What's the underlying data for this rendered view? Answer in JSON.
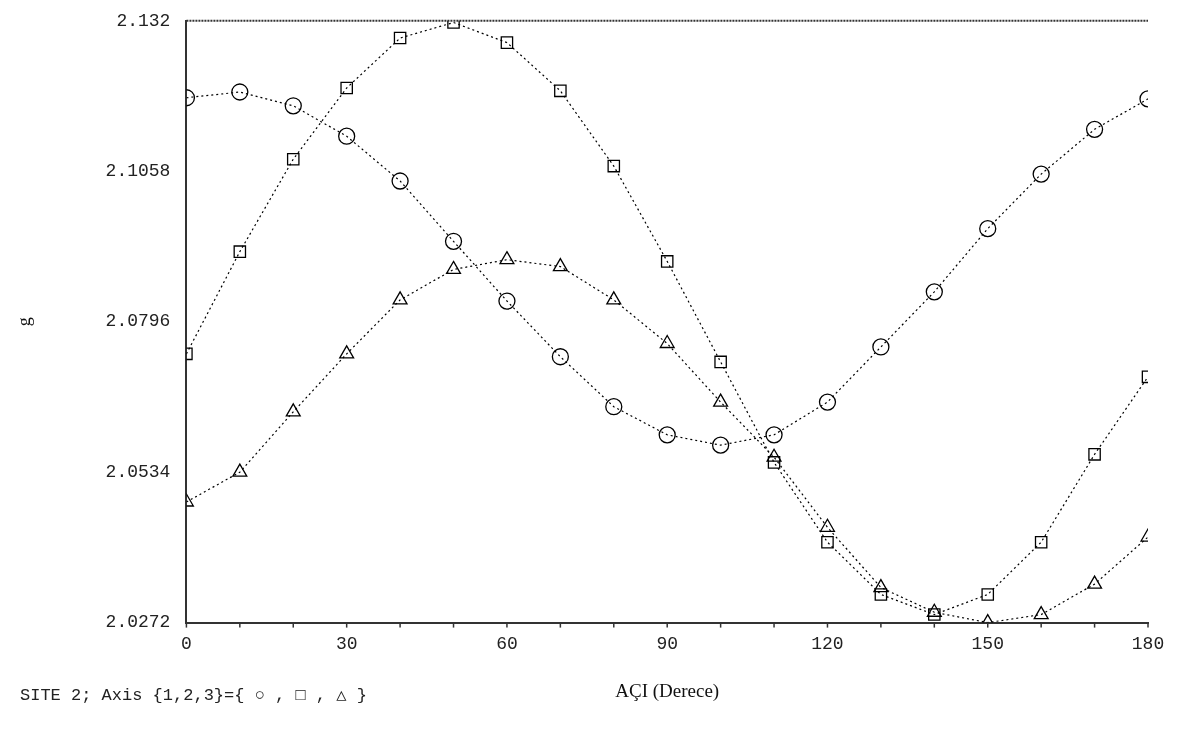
{
  "chart_data": {
    "type": "line",
    "xlabel": "AÇI (Derece)",
    "ylabel": "g",
    "annotations": [
      "SITE 2; Axis {1,2,3}={ ○ , □ , △ }"
    ],
    "x": [
      0,
      10,
      20,
      30,
      40,
      50,
      60,
      70,
      80,
      90,
      100,
      110,
      120,
      130,
      140,
      150,
      160,
      170,
      180
    ],
    "xlim": [
      0,
      180
    ],
    "xticks": [
      0,
      30,
      60,
      90,
      120,
      150,
      180
    ],
    "ylim": [
      2.0272,
      2.132
    ],
    "yticks": [
      2.0272,
      2.0534,
      2.0796,
      2.1058,
      2.132
    ],
    "grid": false,
    "legend": false,
    "line_style": "dotted",
    "series": [
      {
        "color": "#000000",
        "marker": "circle",
        "values": [
          2.1186,
          2.1196,
          2.1172,
          2.1119,
          2.1041,
          2.0936,
          2.0832,
          2.0735,
          2.0648,
          2.0599,
          2.0581,
          2.0599,
          2.0656,
          2.0752,
          2.0848,
          2.0958,
          2.1053,
          2.1131,
          2.1184
        ]
      },
      {
        "color": "#000000",
        "marker": "square",
        "values": [
          2.074,
          2.0918,
          2.1079,
          2.1203,
          2.129,
          2.1317,
          2.1282,
          2.1198,
          2.1067,
          2.0901,
          2.0726,
          2.0551,
          2.0412,
          2.0321,
          2.0286,
          2.0321,
          2.0412,
          2.0565,
          2.07
        ]
      },
      {
        "color": "#000000",
        "marker": "triangle",
        "values": [
          2.0482,
          2.0534,
          2.0639,
          2.074,
          2.0834,
          2.0887,
          2.0904,
          2.0892,
          2.0834,
          2.0758,
          2.0656,
          2.056,
          2.0438,
          2.0333,
          2.029,
          2.0272,
          2.0286,
          2.0339,
          2.0421
        ]
      }
    ]
  }
}
